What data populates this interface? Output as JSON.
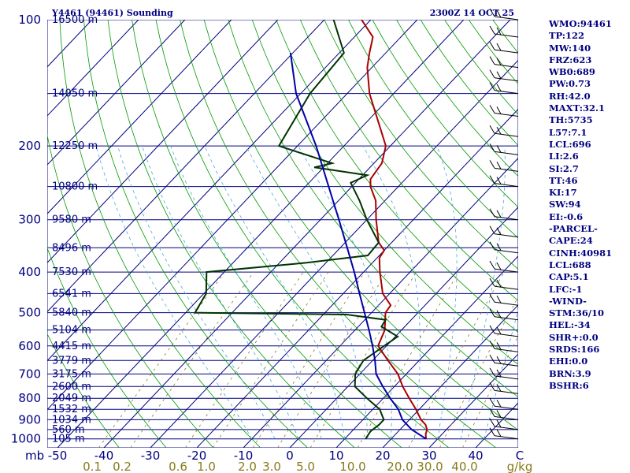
{
  "header": {
    "title": "Y4461 (94461) Sounding",
    "time": "2300Z 14 OCT 25"
  },
  "chart_data": {
    "type": "line",
    "title": "Y4461 (94461) Sounding",
    "subtitle": "2300Z 14 OCT 25",
    "x_axis": {
      "label": "C",
      "ticks": [
        "-50",
        "-40",
        "-30",
        "-20",
        "-10",
        "0",
        "10",
        "20",
        "30",
        "40"
      ],
      "range_c": [
        -50,
        50
      ]
    },
    "y_axis": {
      "label": "mb",
      "scale": "log-pressure",
      "ticks": [
        "100",
        "200",
        "300",
        "400",
        "500",
        "600",
        "700",
        "800",
        "900",
        "1000"
      ],
      "range_mb": [
        100,
        1050
      ]
    },
    "mixing_ratio_axis": {
      "label": "g/kg",
      "ticks": [
        "0.1",
        "0.2",
        "0.6",
        "1.0",
        "2.0",
        "3.0",
        "5.0",
        "10.0",
        "20.0",
        "30.0",
        "40.0"
      ]
    },
    "height_labels": [
      {
        "p": 100,
        "label": "16500 m"
      },
      {
        "p": 150,
        "label": "14050 m"
      },
      {
        "p": 200,
        "label": "12250 m"
      },
      {
        "p": 250,
        "label": "10800 m"
      },
      {
        "p": 300,
        "label": "9580 m"
      },
      {
        "p": 350,
        "label": "8496 m"
      },
      {
        "p": 400,
        "label": "7530 m"
      },
      {
        "p": 450,
        "label": "6541 m"
      },
      {
        "p": 500,
        "label": "5840 m"
      },
      {
        "p": 550,
        "label": "5104 m"
      },
      {
        "p": 600,
        "label": "4415 m"
      },
      {
        "p": 650,
        "label": "3779 m"
      },
      {
        "p": 700,
        "label": "3175 m"
      },
      {
        "p": 750,
        "label": "2600 m"
      },
      {
        "p": 800,
        "label": "2049 m"
      },
      {
        "p": 850,
        "label": "1532 m"
      },
      {
        "p": 900,
        "label": "1034 m"
      },
      {
        "p": 950,
        "label": "560 m"
      },
      {
        "p": 1000,
        "label": "105 m"
      }
    ],
    "series": [
      {
        "name": "Temperature",
        "color": "#aa0000",
        "points": [
          {
            "p": 1000,
            "t": 27.5
          },
          {
            "p": 975,
            "t": 26.5
          },
          {
            "p": 950,
            "t": 25.8
          },
          {
            "p": 925,
            "t": 24.5
          },
          {
            "p": 900,
            "t": 22.5
          },
          {
            "p": 850,
            "t": 19.3
          },
          {
            "p": 800,
            "t": 15.6
          },
          {
            "p": 750,
            "t": 11.8
          },
          {
            "p": 700,
            "t": 8.2
          },
          {
            "p": 650,
            "t": 3.3
          },
          {
            "p": 600,
            "t": -1.8
          },
          {
            "p": 550,
            "t": -3.6
          },
          {
            "p": 500,
            "t": -7.0
          },
          {
            "p": 480,
            "t": -7.4
          },
          {
            "p": 450,
            "t": -11.5
          },
          {
            "p": 400,
            "t": -16.5
          },
          {
            "p": 370,
            "t": -19.5
          },
          {
            "p": 355,
            "t": -20.0
          },
          {
            "p": 340,
            "t": -22.8
          },
          {
            "p": 300,
            "t": -28.0
          },
          {
            "p": 270,
            "t": -32.0
          },
          {
            "p": 250,
            "t": -36.0
          },
          {
            "p": 240,
            "t": -37.5
          },
          {
            "p": 220,
            "t": -38.3
          },
          {
            "p": 200,
            "t": -41.0
          },
          {
            "p": 150,
            "t": -55.2
          },
          {
            "p": 130,
            "t": -61.0
          },
          {
            "p": 120,
            "t": -63.5
          },
          {
            "p": 110,
            "t": -66.0
          },
          {
            "p": 100,
            "t": -72.0
          }
        ]
      },
      {
        "name": "Dewpoint",
        "color": "#003300",
        "points": [
          {
            "p": 1000,
            "t": 14.5
          },
          {
            "p": 960,
            "t": 14.0
          },
          {
            "p": 925,
            "t": 14.5
          },
          {
            "p": 900,
            "t": 14.5
          },
          {
            "p": 850,
            "t": 11.5
          },
          {
            "p": 800,
            "t": 6.5
          },
          {
            "p": 750,
            "t": 1.5
          },
          {
            "p": 700,
            "t": -1.0
          },
          {
            "p": 650,
            "t": -2.0
          },
          {
            "p": 600,
            "t": -0.5
          },
          {
            "p": 570,
            "t": 0.5
          },
          {
            "p": 540,
            "t": -5.0
          },
          {
            "p": 520,
            "t": -5.5
          },
          {
            "p": 505,
            "t": -15.0
          },
          {
            "p": 500,
            "t": -48.0
          },
          {
            "p": 450,
            "t": -49.5
          },
          {
            "p": 400,
            "t": -53.8
          },
          {
            "p": 380,
            "t": -34.2
          },
          {
            "p": 365,
            "t": -22.5
          },
          {
            "p": 340,
            "t": -22.8
          },
          {
            "p": 300,
            "t": -30.0
          },
          {
            "p": 270,
            "t": -35.5
          },
          {
            "p": 245,
            "t": -41.0
          },
          {
            "p": 235,
            "t": -39.0
          },
          {
            "p": 225,
            "t": -52.0
          },
          {
            "p": 220,
            "t": -49.0
          },
          {
            "p": 200,
            "t": -64.0
          },
          {
            "p": 150,
            "t": -68.0
          },
          {
            "p": 120,
            "t": -69.0
          },
          {
            "p": 100,
            "t": -78.0
          }
        ]
      },
      {
        "name": "Parcel",
        "color": "#0000aa",
        "points": [
          {
            "p": 1000,
            "t": 27.5
          },
          {
            "p": 950,
            "t": 22.5
          },
          {
            "p": 900,
            "t": 18.5
          },
          {
            "p": 850,
            "t": 15.5
          },
          {
            "p": 800,
            "t": 11.5
          },
          {
            "p": 750,
            "t": 7.5
          },
          {
            "p": 700,
            "t": 3.5
          },
          {
            "p": 650,
            "t": 0.5
          },
          {
            "p": 600,
            "t": -3.0
          },
          {
            "p": 550,
            "t": -7.0
          },
          {
            "p": 500,
            "t": -11.5
          },
          {
            "p": 450,
            "t": -16.5
          },
          {
            "p": 400,
            "t": -22.0
          },
          {
            "p": 350,
            "t": -28.5
          },
          {
            "p": 300,
            "t": -36.0
          },
          {
            "p": 250,
            "t": -45.0
          },
          {
            "p": 200,
            "t": -56.0
          },
          {
            "p": 150,
            "t": -71.0
          },
          {
            "p": 120,
            "t": -80.5
          }
        ]
      }
    ],
    "wind_barbs": [
      {
        "p": 100
      },
      {
        "p": 110
      },
      {
        "p": 120
      },
      {
        "p": 130
      },
      {
        "p": 140
      },
      {
        "p": 150
      },
      {
        "p": 170
      },
      {
        "p": 190
      },
      {
        "p": 210
      },
      {
        "p": 230
      },
      {
        "p": 250
      },
      {
        "p": 300
      },
      {
        "p": 330
      },
      {
        "p": 360
      },
      {
        "p": 400
      },
      {
        "p": 440
      },
      {
        "p": 480
      },
      {
        "p": 520
      },
      {
        "p": 570
      },
      {
        "p": 620
      },
      {
        "p": 670
      },
      {
        "p": 720
      },
      {
        "p": 780
      },
      {
        "p": 850
      },
      {
        "p": 900
      },
      {
        "p": 950
      },
      {
        "p": 1000
      }
    ]
  },
  "indices": [
    "WMO:94461",
    "TP:122",
    "MW:140",
    "FRZ:623",
    "WB0:689",
    "PW:0.73",
    "RH:42.0",
    "MAXT:32.1",
    "TH:5735",
    "L57:7.1",
    "LCL:696",
    "LI:2.6",
    "SI:2.7",
    "TT:46",
    "KI:17",
    "SW:94",
    "EI:-0.6",
    "-PARCEL-",
    "CAPE:24",
    "CINH:40981",
    "LCL:688",
    "CAP:5.1",
    "LFC:-1",
    "-WIND-",
    "STM:36/10",
    "HEL:-34",
    "SHR+:0.0",
    "SRDS:166",
    "EHI:0.0",
    "BRN:3.9",
    "BSHR:6"
  ],
  "colors": {
    "isobar": "#000080",
    "isotherm": "#000080",
    "dry_adiabat": "#009900",
    "moist_adiabat": "#4aa8d8",
    "mixing_ratio": "#8a7a1a",
    "background": "#ffffff"
  }
}
